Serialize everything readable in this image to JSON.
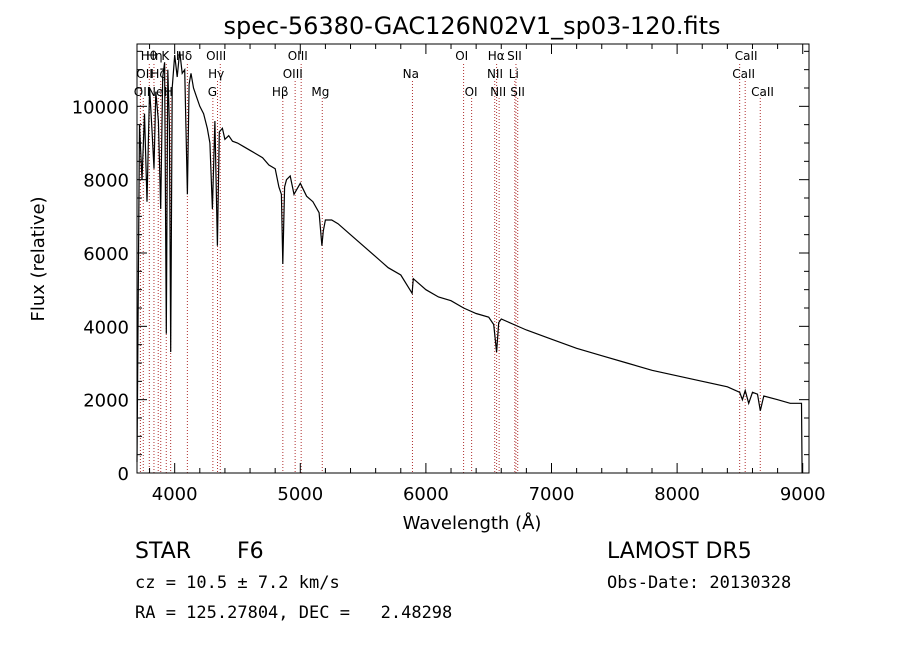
{
  "chart_data": {
    "type": "line",
    "title": "spec-56380-GAC126N02V1_sp03-120.fits",
    "xlabel": "Wavelength (Å)",
    "ylabel": "Flux (relative)",
    "xlim": [
      3700,
      9050
    ],
    "ylim": [
      0,
      11700
    ],
    "xticks": [
      4000,
      5000,
      6000,
      7000,
      8000,
      9000
    ],
    "yticks": [
      0,
      2000,
      4000,
      6000,
      8000,
      10000
    ],
    "line_color": "#000000",
    "marker_color": "#b03030",
    "spectrum": {
      "x": [
        3700,
        3720,
        3740,
        3760,
        3780,
        3800,
        3820,
        3835,
        3850,
        3870,
        3889,
        3905,
        3920,
        3933,
        3945,
        3958,
        3968,
        3980,
        4000,
        4020,
        4040,
        4060,
        4080,
        4101,
        4115,
        4130,
        4150,
        4170,
        4200,
        4230,
        4260,
        4280,
        4300,
        4320,
        4340,
        4355,
        4380,
        4400,
        4430,
        4460,
        4500,
        4550,
        4600,
        4650,
        4700,
        4750,
        4800,
        4830,
        4850,
        4861,
        4875,
        4890,
        4920,
        4950,
        5000,
        5050,
        5100,
        5150,
        5172,
        5183,
        5200,
        5250,
        5300,
        5400,
        5500,
        5600,
        5700,
        5800,
        5890,
        5900,
        5950,
        6000,
        6100,
        6200,
        6300,
        6400,
        6500,
        6540,
        6563,
        6580,
        6600,
        6700,
        6800,
        7000,
        7200,
        7400,
        7600,
        7800,
        8000,
        8200,
        8400,
        8498,
        8520,
        8542,
        8570,
        8600,
        8640,
        8662,
        8690,
        8800,
        8900,
        8990,
        8995
      ],
      "y": [
        300,
        9500,
        8000,
        9800,
        7400,
        10500,
        9300,
        8300,
        10400,
        9600,
        7200,
        10800,
        11200,
        3800,
        11000,
        9500,
        3300,
        10500,
        11400,
        10800,
        11500,
        10900,
        11000,
        7600,
        10600,
        10900,
        10500,
        10300,
        10000,
        9800,
        9400,
        9000,
        7200,
        9600,
        6200,
        9300,
        9400,
        9100,
        9200,
        9050,
        9000,
        8900,
        8800,
        8700,
        8600,
        8400,
        8300,
        7800,
        7600,
        5700,
        7800,
        8000,
        8100,
        7600,
        7900,
        7550,
        7400,
        7100,
        6200,
        6600,
        6900,
        6900,
        6800,
        6500,
        6200,
        5900,
        5600,
        5400,
        4900,
        5300,
        5150,
        5000,
        4800,
        4700,
        4500,
        4350,
        4250,
        4050,
        3300,
        4100,
        4200,
        4050,
        3900,
        3650,
        3400,
        3200,
        3000,
        2800,
        2650,
        2500,
        2350,
        2200,
        2000,
        2250,
        1900,
        2200,
        2150,
        1700,
        2100,
        2000,
        1900,
        1900,
        0
      ]
    },
    "lines": [
      {
        "wl": 3727,
        "row": 2
      },
      {
        "wl": 3750,
        "row": 3
      },
      {
        "wl": 3798,
        "row": 1
      },
      {
        "wl": 3835,
        "row": 1
      },
      {
        "wl": 3869,
        "row": 3
      },
      {
        "wl": 3889,
        "row": 2
      },
      {
        "wl": 3933,
        "row": 1
      },
      {
        "wl": 3968,
        "row": 3
      },
      {
        "wl": 4101,
        "row": 1
      },
      {
        "wl": 4304,
        "row": 3
      },
      {
        "wl": 4341,
        "row": 2
      },
      {
        "wl": 4363,
        "row": 1
      },
      {
        "wl": 4861,
        "row": 3
      },
      {
        "wl": 4959,
        "row": 2
      },
      {
        "wl": 5007,
        "row": 1
      },
      {
        "wl": 5175,
        "row": 3
      },
      {
        "wl": 5893,
        "row": 2
      },
      {
        "wl": 6300,
        "row": 1
      },
      {
        "wl": 6364,
        "row": 3
      },
      {
        "wl": 6548,
        "row": 2
      },
      {
        "wl": 6563,
        "row": 1
      },
      {
        "wl": 6583,
        "row": 3
      },
      {
        "wl": 6708,
        "row": 2
      },
      {
        "wl": 6717,
        "row": 1
      },
      {
        "wl": 6731,
        "row": 3
      },
      {
        "wl": 8498,
        "row": 1
      },
      {
        "wl": 8542,
        "row": 2
      },
      {
        "wl": 8662,
        "row": 3
      }
    ],
    "line_labels": [
      {
        "text": "Hθ",
        "wl": 3795,
        "row": 1
      },
      {
        "text": "Hη",
        "wl": 3838,
        "row": 1
      },
      {
        "text": "K",
        "wl": 3925,
        "row": 1
      },
      {
        "text": "Hδ",
        "wl": 4075,
        "row": 1
      },
      {
        "text": "OII",
        "wl": 3760,
        "row": 2
      },
      {
        "text": "Hζ",
        "wl": 3868,
        "row": 2
      },
      {
        "text": "OII",
        "wl": 3740,
        "row": 3
      },
      {
        "text": "Ne",
        "wl": 3845,
        "row": 3
      },
      {
        "text": "H",
        "wl": 3950,
        "row": 3
      },
      {
        "text": "OIII",
        "wl": 4330,
        "row": 1
      },
      {
        "text": "Hγ",
        "wl": 4330,
        "row": 2
      },
      {
        "text": "G",
        "wl": 4300,
        "row": 3
      },
      {
        "text": "OIII",
        "wl": 4980,
        "row": 1
      },
      {
        "text": "OIII",
        "wl": 4940,
        "row": 2
      },
      {
        "text": "Hβ",
        "wl": 4840,
        "row": 3
      },
      {
        "text": "Mg",
        "wl": 5160,
        "row": 3
      },
      {
        "text": "Na",
        "wl": 5880,
        "row": 2
      },
      {
        "text": "OI",
        "wl": 6285,
        "row": 1
      },
      {
        "text": "OI",
        "wl": 6360,
        "row": 3
      },
      {
        "text": "Hα",
        "wl": 6560,
        "row": 1
      },
      {
        "text": "SII",
        "wl": 6705,
        "row": 1
      },
      {
        "text": "NII",
        "wl": 6550,
        "row": 2
      },
      {
        "text": "Li",
        "wl": 6700,
        "row": 2
      },
      {
        "text": "NII",
        "wl": 6575,
        "row": 3
      },
      {
        "text": "SII",
        "wl": 6730,
        "row": 3
      },
      {
        "text": "CaII",
        "wl": 8550,
        "row": 1
      },
      {
        "text": "CaII",
        "wl": 8530,
        "row": 2
      },
      {
        "text": "CaII",
        "wl": 8680,
        "row": 3
      }
    ]
  },
  "info": {
    "object_class": "STAR",
    "subclass": "F6",
    "survey": "LAMOST DR5",
    "redshift_line": "cz = 10.5 ± 7.2 km/s",
    "obs_date_line": "Obs-Date: 20130328",
    "coords_line": "RA = 125.27804, DEC =   2.48298"
  }
}
